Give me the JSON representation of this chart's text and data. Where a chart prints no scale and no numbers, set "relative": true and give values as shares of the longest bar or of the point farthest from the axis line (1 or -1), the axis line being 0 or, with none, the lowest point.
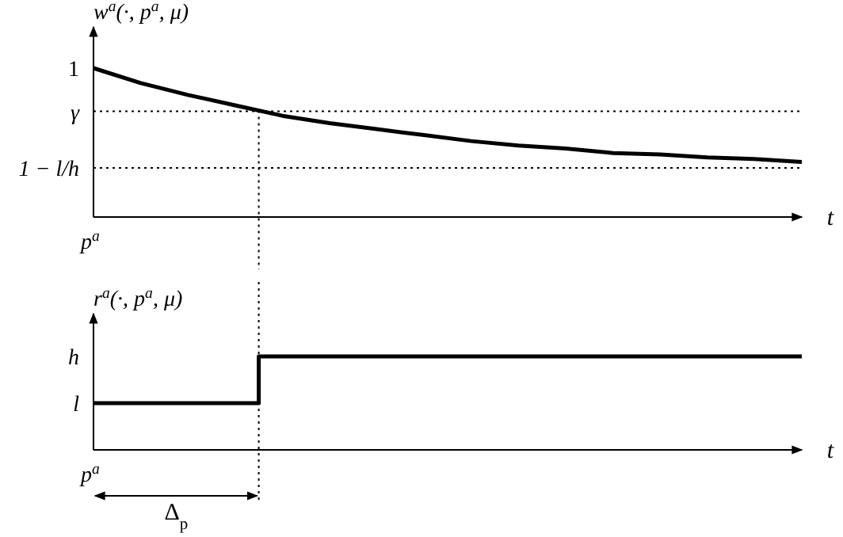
{
  "chart_data": [
    {
      "type": "line",
      "relative": true,
      "ylabel": "w$^{a}$(·, p$^{a}$, μ)",
      "xlabel": "t",
      "categories": [
        null,
        null,
        null,
        null,
        null,
        null,
        null,
        null,
        null,
        null,
        null,
        null,
        null,
        null,
        null,
        null
      ],
      "series": [
        {
          "color": "#000000",
          "values": [
            1.0,
            0.9,
            0.82,
            0.75,
            0.68,
            0.63,
            0.59,
            0.55,
            0.51,
            0.48,
            0.46,
            0.43,
            0.42,
            0.4,
            0.39,
            0.37
          ]
        }
      ],
      "ref_lines": [
        {
          "axis": "y",
          "value": 0.71,
          "label": "γ",
          "line_style": "dotted"
        },
        {
          "axis": "y",
          "value": 0.33,
          "label": "1 − l/h",
          "line_style": "dotted"
        }
      ],
      "annotations": [
        "p$^{a}$",
        "1"
      ]
    },
    {
      "type": "step",
      "relative": true,
      "ylabel": "r$^{a}$(·, p$^{a}$, μ)",
      "xlabel": "t",
      "categories": [
        null,
        null,
        null,
        null,
        null,
        null,
        null,
        null,
        null,
        null,
        null,
        null,
        null,
        null,
        null,
        null,
        null,
        null,
        null,
        null,
        null,
        null,
        null,
        null,
        null,
        null,
        null,
        null,
        null,
        null,
        null
      ],
      "series": [
        {
          "color": "#000000",
          "values": [
            0.5,
            0.5,
            0.5,
            0.5,
            0.5,
            0.5,
            0.5,
            1,
            1,
            1,
            1,
            1,
            1,
            1,
            1,
            1,
            1,
            1,
            1,
            1,
            1,
            1,
            1,
            1,
            1,
            1,
            1,
            1,
            1,
            1,
            1
          ]
        }
      ],
      "annotations": [
        "p$^{a}$",
        "h",
        "l",
        "Δ$_{p}$"
      ]
    }
  ]
}
